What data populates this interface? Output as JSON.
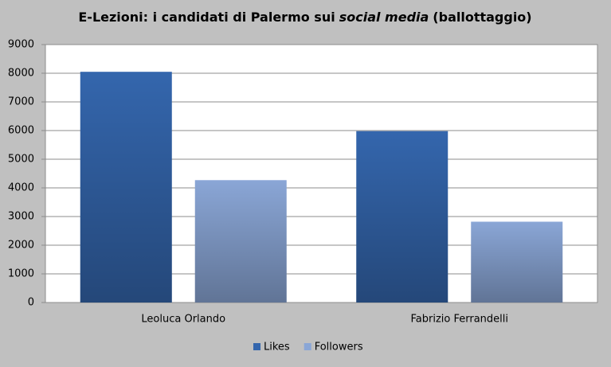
{
  "chart_data": {
    "type": "bar",
    "title": [
      "E-Lezioni: i candidati di Palermo sui",
      "social media",
      "(ballottaggio)"
    ],
    "categories": [
      "Leoluca Orlando",
      "Fabrizio Ferrandelli"
    ],
    "series": [
      {
        "name": "Likes",
        "color": "#3466ad",
        "values": [
          8050,
          5980
        ]
      },
      {
        "name": "Followers",
        "color": "#8aa6d6",
        "values": [
          4270,
          2820
        ]
      }
    ],
    "ylim": [
      0,
      9000
    ],
    "yticks": [
      0,
      1000,
      2000,
      3000,
      4000,
      5000,
      6000,
      7000,
      8000,
      9000
    ],
    "grid": true,
    "legend": "bottom"
  }
}
